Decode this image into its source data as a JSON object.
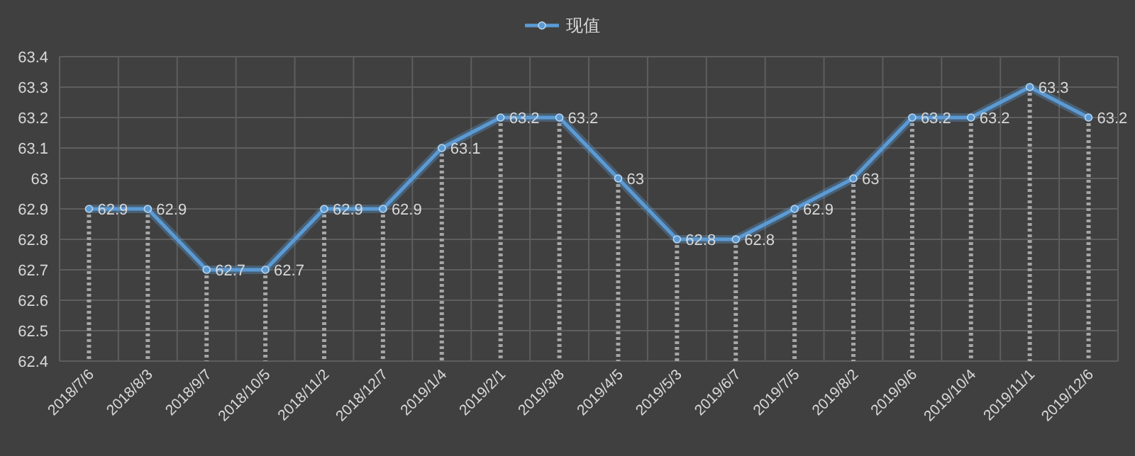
{
  "chart_data": {
    "type": "line",
    "categories": [
      "2018/7/6",
      "2018/8/3",
      "2018/9/7",
      "2018/10/5",
      "2018/11/2",
      "2018/12/7",
      "2019/1/4",
      "2019/2/1",
      "2019/3/8",
      "2019/4/5",
      "2019/5/3",
      "2019/6/7",
      "2019/7/5",
      "2019/8/2",
      "2019/9/6",
      "2019/10/4",
      "2019/11/1",
      "2019/12/6"
    ],
    "series": [
      {
        "name": "现值",
        "color": "#5b9bd5",
        "values": [
          62.9,
          62.9,
          62.7,
          62.7,
          62.9,
          62.9,
          63.1,
          63.2,
          63.2,
          63,
          62.8,
          62.8,
          62.9,
          63,
          63.2,
          63.2,
          63.3,
          63.2
        ]
      }
    ],
    "ylim": [
      62.4,
      63.4
    ],
    "yticks": [
      62.4,
      62.5,
      62.6,
      62.7,
      62.8,
      62.9,
      63,
      63.1,
      63.2,
      63.3,
      63.4
    ],
    "grid": true,
    "legend": "top",
    "marker": "circle",
    "line_style": "solid",
    "data_labels": true
  }
}
